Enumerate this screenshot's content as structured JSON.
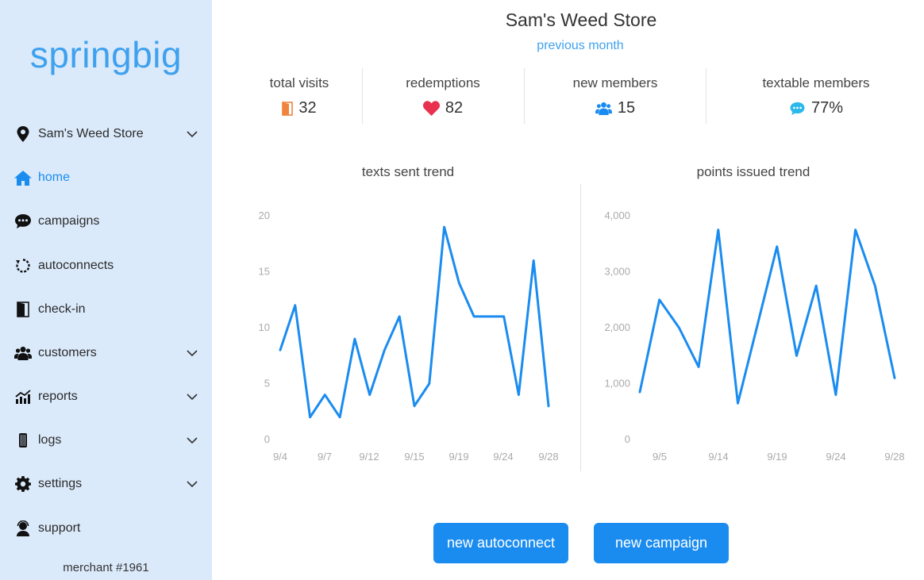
{
  "sidebar": {
    "logo": "springbig",
    "items": [
      {
        "label": "Sam's Weed Store",
        "icon": "location-pin-icon",
        "chevron": true
      },
      {
        "label": "home",
        "icon": "home-icon",
        "active": true
      },
      {
        "label": "campaigns",
        "icon": "chat-bubble-icon"
      },
      {
        "label": "autoconnects",
        "icon": "refresh-icon"
      },
      {
        "label": "check-in",
        "icon": "door-icon"
      },
      {
        "label": "customers",
        "icon": "users-icon",
        "chevron": true
      },
      {
        "label": "reports",
        "icon": "chart-icon",
        "chevron": true
      },
      {
        "label": "logs",
        "icon": "logs-icon",
        "chevron": true
      },
      {
        "label": "settings",
        "icon": "gear-icon",
        "chevron": true
      },
      {
        "label": "support",
        "icon": "support-agent-icon"
      }
    ],
    "merchant": "merchant #1961"
  },
  "header": {
    "title": "Sam's Weed Store",
    "period": "previous month"
  },
  "stats": [
    {
      "label": "total visits",
      "value": "32",
      "icon": "door-icon",
      "color": "#f0843c"
    },
    {
      "label": "redemptions",
      "value": "82",
      "icon": "heart-icon",
      "color": "#e8304f"
    },
    {
      "label": "new members",
      "value": "15",
      "icon": "users-icon",
      "color": "#1a8cf0"
    },
    {
      "label": "textable members",
      "value": "77%",
      "icon": "chat-bubble-icon",
      "color": "#2bb8ea"
    }
  ],
  "chart_data": [
    {
      "type": "line",
      "title": "texts sent trend",
      "x_ticks": [
        "9/4",
        "9/7",
        "9/12",
        "9/15",
        "9/19",
        "9/24",
        "9/28"
      ],
      "y_ticks": [
        "0",
        "5",
        "10",
        "15",
        "20"
      ],
      "ylim": [
        0,
        20
      ],
      "values": [
        8,
        12,
        2,
        4,
        2,
        9,
        4,
        8,
        11,
        3,
        5,
        19,
        14,
        11,
        11,
        11,
        4,
        16,
        3
      ],
      "color": "#1a8cf0",
      "grid": false
    },
    {
      "type": "line",
      "title": "points issued trend",
      "x_ticks": [
        "9/5",
        "9/14",
        "9/19",
        "9/24",
        "9/28"
      ],
      "y_ticks": [
        "0",
        "1,000",
        "2,000",
        "3,000",
        "4,000"
      ],
      "ylim": [
        0,
        4000
      ],
      "values": [
        850,
        2500,
        2000,
        1300,
        3750,
        650,
        2050,
        3450,
        1500,
        2750,
        800,
        3750,
        2750,
        1100
      ],
      "color": "#1a8cf0",
      "grid": false
    }
  ],
  "buttons": {
    "new_autoconnect": "new autoconnect",
    "new_campaign": "new campaign"
  },
  "colors": {
    "sidebar_bg": "#dbeafb",
    "accent": "#1a8cf0",
    "logo": "#3fa1ee"
  }
}
